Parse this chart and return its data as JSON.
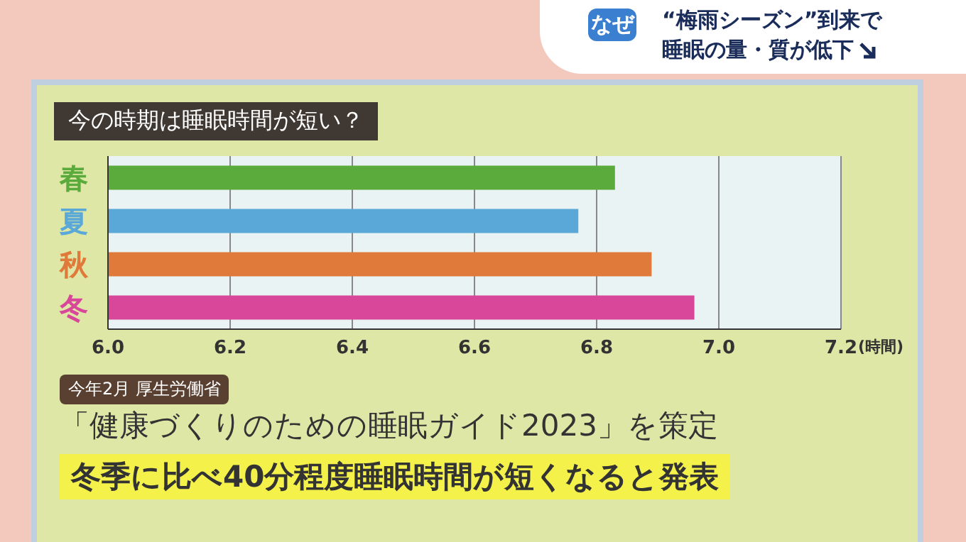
{
  "chart_data": {
    "type": "bar",
    "orientation": "horizontal",
    "title": "今の時期は睡眠時間が短い？",
    "xlabel": "(時間)",
    "categories": [
      "春",
      "夏",
      "秋",
      "冬"
    ],
    "values": [
      6.83,
      6.77,
      6.89,
      6.96
    ],
    "colors": [
      "#5aaa3c",
      "#5aa8d8",
      "#e07a3a",
      "#d9479a"
    ],
    "xlim": [
      6.0,
      7.2
    ],
    "xticks": [
      {
        "value": 6,
        "label": "6.0"
      },
      6.2,
      6.4,
      6.6,
      6.8,
      {
        "value": 7,
        "label": "7.0"
      },
      7.2
    ],
    "grid": "x",
    "annotations": [
      "なぜ",
      "“梅雨シーズン”到来で",
      "睡眠の量・質が低下",
      "今年2月 厚生労働省",
      "「健康づくりのための睡眠ガイド2023」を策定",
      "冬季に比べ40分程度睡眠時間が短くなると発表"
    ]
  }
}
